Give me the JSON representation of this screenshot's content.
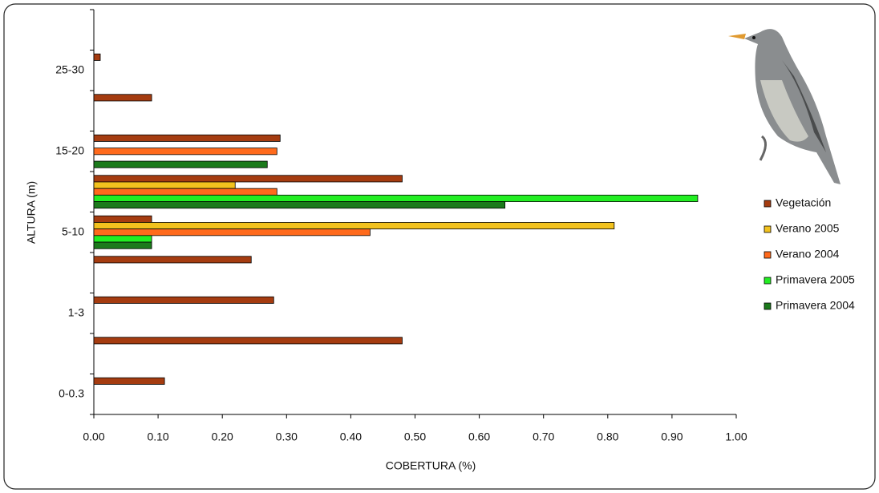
{
  "chart_data": {
    "type": "hbar",
    "x_label": "COBERTURA (%)",
    "y_label": "ALTURA (m)",
    "categories": [
      "0-0.3",
      null,
      "1-3",
      null,
      "5-10",
      null,
      "15-20",
      null,
      "25-30",
      null
    ],
    "series": [
      {
        "name": "Vegetación",
        "color": "#a53c10",
        "values": [
          0.11,
          0.48,
          0.28,
          0.245,
          0.09,
          0.48,
          0.29,
          0.09,
          0.01,
          null
        ]
      },
      {
        "name": "Verano 2005",
        "color": "#f2c21e",
        "values": [
          null,
          null,
          null,
          null,
          0.81,
          0.22,
          null,
          null,
          null,
          null
        ]
      },
      {
        "name": "Verano 2004",
        "color": "#ff6a1c",
        "values": [
          null,
          null,
          null,
          null,
          0.43,
          0.285,
          0.285,
          null,
          null,
          null
        ]
      },
      {
        "name": "Primavera 2005",
        "color": "#22ee22",
        "values": [
          null,
          null,
          null,
          null,
          0.09,
          0.94,
          null,
          null,
          null,
          null
        ]
      },
      {
        "name": "Primavera 2004",
        "color": "#1b7a1b",
        "values": [
          null,
          null,
          null,
          null,
          0.09,
          0.64,
          0.27,
          null,
          null,
          null
        ]
      }
    ],
    "xlim": [
      0,
      1
    ],
    "xticks": [
      {
        "value": 0,
        "label": "0.00"
      },
      {
        "value": 0.1,
        "label": "0.10"
      },
      {
        "value": 0.2,
        "label": "0.20"
      },
      {
        "value": 0.3,
        "label": "0.30"
      },
      {
        "value": 0.4,
        "label": "0.40"
      },
      {
        "value": 0.5,
        "label": "0.50"
      },
      {
        "value": 0.6,
        "label": "0.60"
      },
      {
        "value": 0.7,
        "label": "0.70"
      },
      {
        "value": 0.8,
        "label": "0.80"
      },
      {
        "value": 0.9,
        "label": "0.90"
      },
      {
        "value": 1,
        "label": "1.00"
      }
    ],
    "legend": "right"
  }
}
